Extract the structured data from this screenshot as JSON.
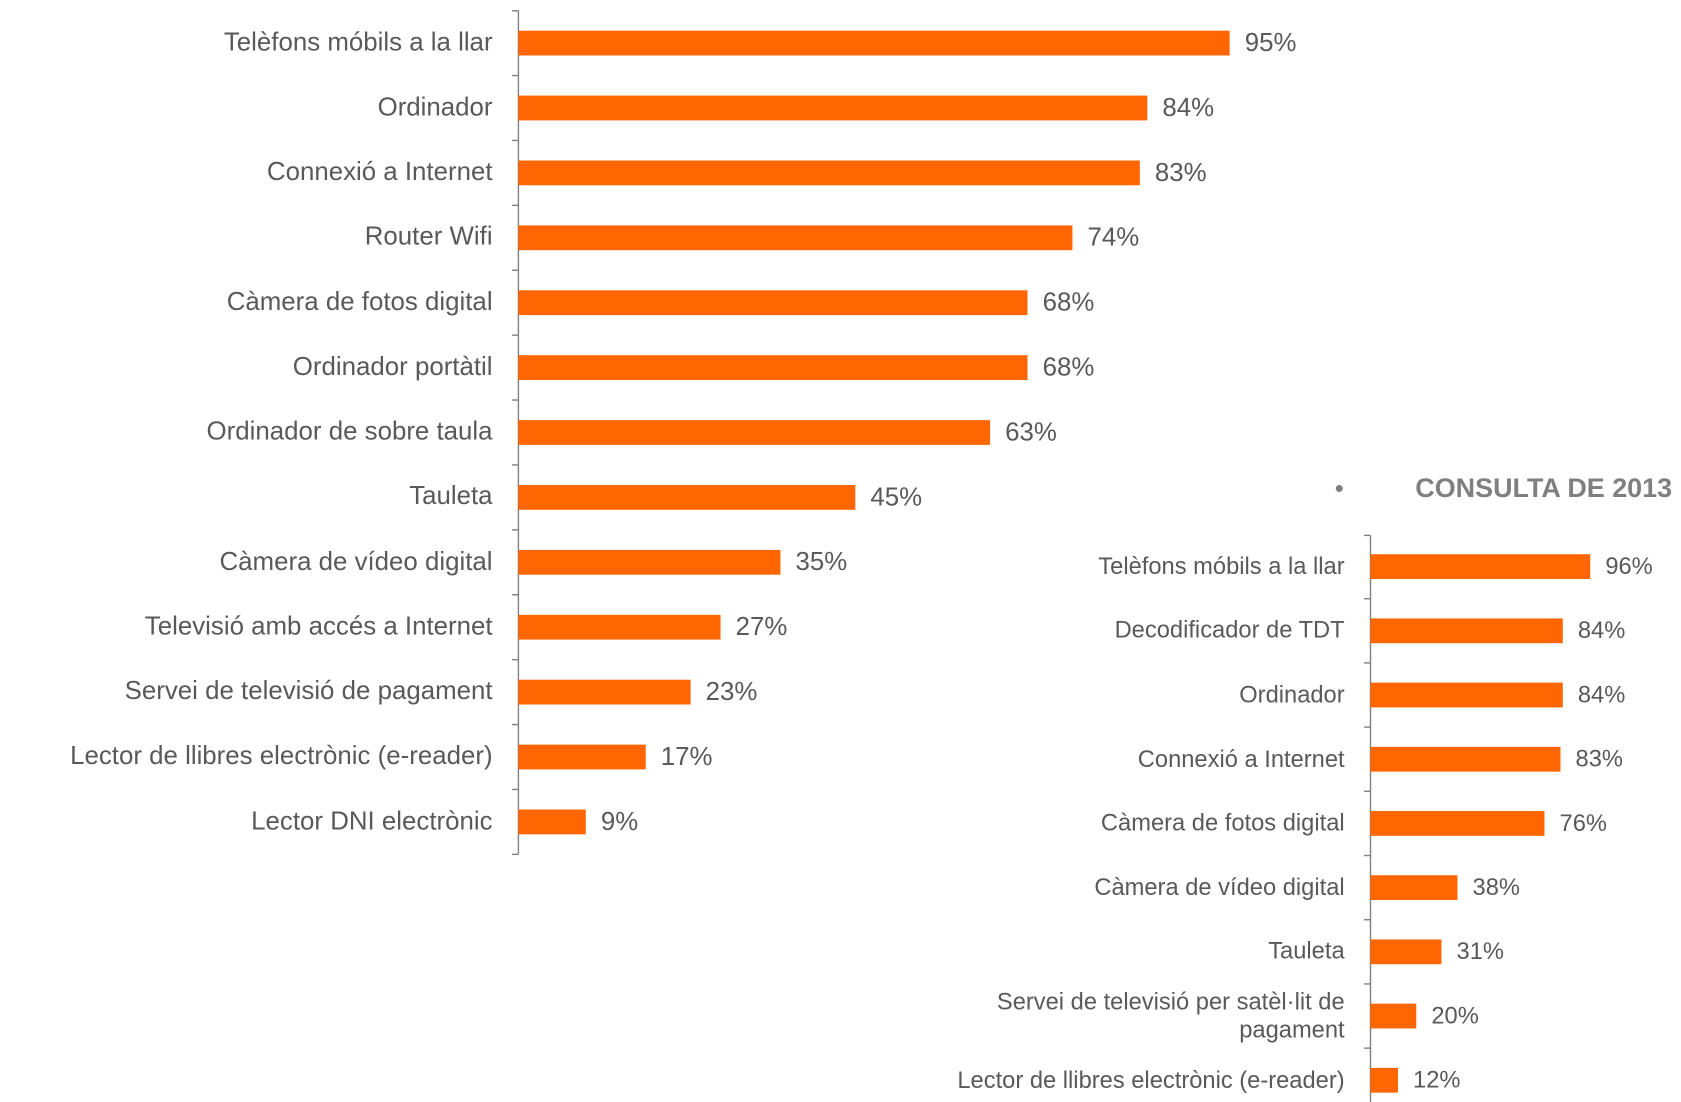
{
  "chart_data": [
    {
      "type": "bar",
      "orientation": "horizontal",
      "color": "#ff6600",
      "categories": [
        "Telèfons móbils a la llar",
        "Ordinador",
        "Connexió a Internet",
        "Router Wifi",
        "Càmera de fotos digital",
        "Ordinador portàtil",
        "Ordinador de sobre taula",
        "Tauleta",
        "Càmera de vídeo digital",
        "Televisió amb accés a Internet",
        "Servei de televisió  de pagament",
        "Lector de llibres electrònic (e-reader)",
        "Lector DNI electrònic"
      ],
      "values": [
        95,
        84,
        83,
        74,
        68,
        68,
        63,
        45,
        35,
        27,
        23,
        17,
        9
      ],
      "value_labels": [
        "95%",
        "84%",
        "83%",
        "74%",
        "68%",
        "68%",
        "63%",
        "45%",
        "35%",
        "27%",
        "23%",
        "17%",
        "9%"
      ]
    },
    {
      "type": "bar",
      "orientation": "horizontal",
      "color": "#ff6600",
      "title": "CONSULTA DE 2013",
      "categories": [
        "Telèfons móbils a la llar",
        "Decodificador de TDT",
        "Ordinador",
        "Connexió a Internet",
        "Càmera de fotos digital",
        "Càmera de vídeo digital",
        "Tauleta",
        "Servei de televisió per satèl·lit de pagament",
        "Lector de llibres electrònic (e-reader)"
      ],
      "values": [
        96,
        84,
        84,
        83,
        76,
        38,
        31,
        20,
        12
      ],
      "value_labels": [
        "96%",
        "84%",
        "84%",
        "83%",
        "76%",
        "38%",
        "31%",
        "20%",
        "12%"
      ]
    }
  ]
}
